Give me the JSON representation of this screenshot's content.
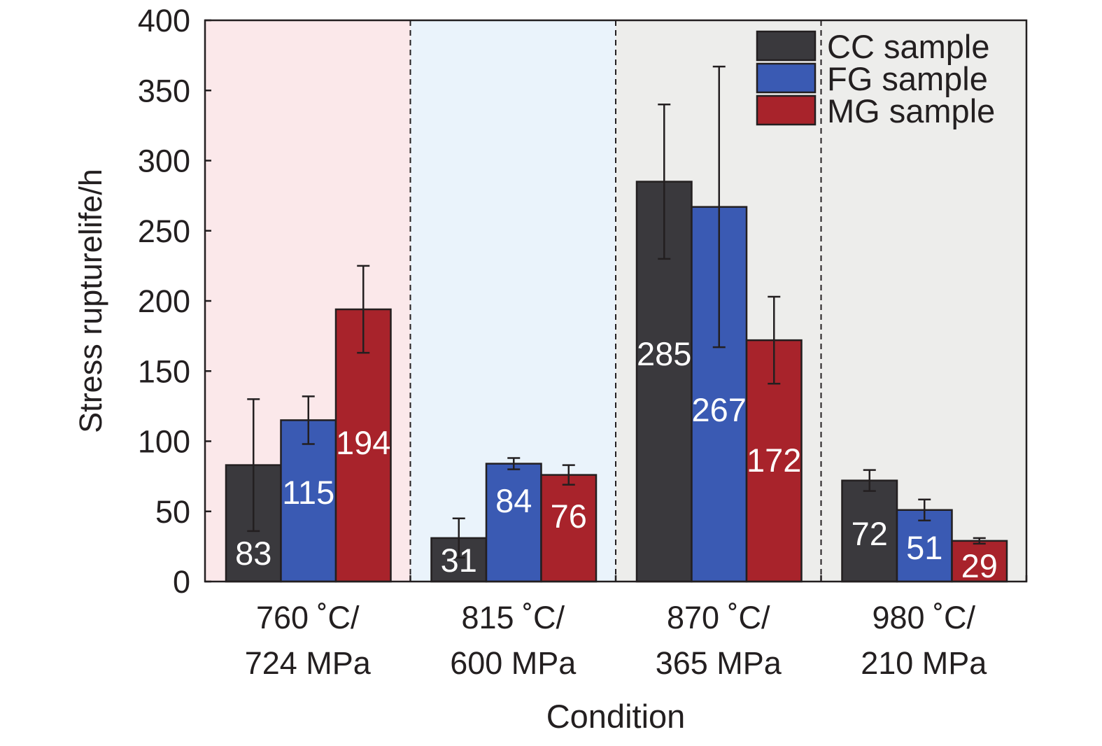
{
  "chart_data": {
    "type": "bar",
    "title": "",
    "xlabel": "Condition",
    "ylabel": "Stress rupturelife/h",
    "ylim": [
      0,
      400
    ],
    "yticks": [
      0,
      50,
      100,
      150,
      200,
      250,
      300,
      350,
      400
    ],
    "categories": [
      {
        "line1": "760 ˚C/",
        "line2": "724 MPa"
      },
      {
        "line1": "815 ˚C/",
        "line2": "600 MPa"
      },
      {
        "line1": "870 ˚C/",
        "line2": "365 MPa"
      },
      {
        "line1": "980 ˚C/",
        "line2": "210 MPa"
      }
    ],
    "region_colors": [
      "#fbe8ea",
      "#eaf3fb",
      "#ededeb",
      "#ededeb"
    ],
    "series": [
      {
        "name": "CC sample",
        "color": "#3a393d",
        "values": [
          83,
          31,
          285,
          72
        ],
        "errors": [
          47,
          14,
          55,
          7.5
        ]
      },
      {
        "name": "FG sample",
        "color": "#3a5ab3",
        "values": [
          115,
          84,
          267,
          51
        ],
        "errors": [
          17,
          4,
          100,
          7.5
        ]
      },
      {
        "name": "MG sample",
        "color": "#a8232b",
        "values": [
          194,
          76,
          172,
          29
        ],
        "errors": [
          31,
          7,
          31,
          2
        ]
      }
    ],
    "legend_position": "top-right",
    "grid": false
  }
}
